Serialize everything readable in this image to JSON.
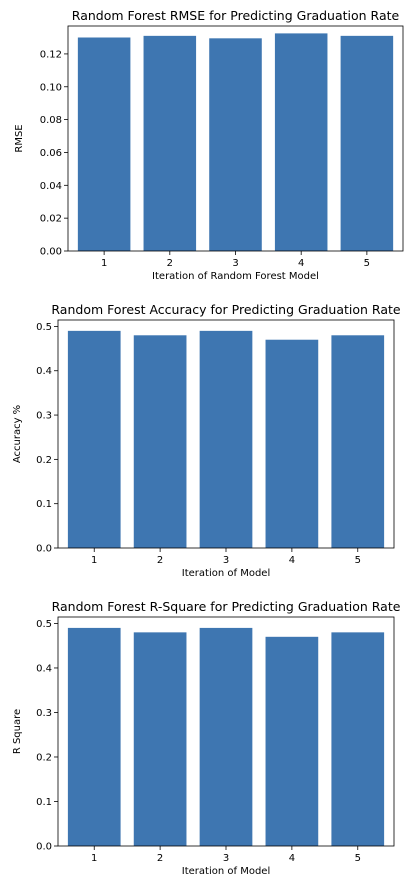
{
  "chart_data": [
    {
      "type": "bar",
      "title": "Random Forest RMSE for Predicting Graduation Rate",
      "xlabel": "Iteration of Random Forest Model",
      "ylabel": "RMSE",
      "categories": [
        "1",
        "2",
        "3",
        "4",
        "5"
      ],
      "values": [
        0.13,
        0.131,
        0.1295,
        0.1325,
        0.131
      ],
      "ylim": [
        0,
        0.137
      ],
      "yticks": [
        "0.00",
        "0.02",
        "0.04",
        "0.06",
        "0.08",
        "0.10",
        "0.12"
      ],
      "grid": false,
      "color": "#3e76b1"
    },
    {
      "type": "bar",
      "title": "Random Forest Accuracy for Predicting Graduation Rate",
      "xlabel": "Iteration of Model",
      "ylabel": "Accuracy %",
      "categories": [
        "1",
        "2",
        "3",
        "4",
        "5"
      ],
      "values": [
        0.49,
        0.48,
        0.49,
        0.47,
        0.48
      ],
      "ylim": [
        0,
        0.5145
      ],
      "yticks": [
        "0.0",
        "0.1",
        "0.2",
        "0.3",
        "0.4",
        "0.5"
      ],
      "grid": false,
      "color": "#3e76b1"
    },
    {
      "type": "bar",
      "title": "Random Forest R-Square for Predicting Graduation Rate",
      "xlabel": "Iteration of Model",
      "ylabel": "R Square",
      "categories": [
        "1",
        "2",
        "3",
        "4",
        "5"
      ],
      "values": [
        0.49,
        0.48,
        0.49,
        0.47,
        0.48
      ],
      "ylim": [
        0,
        0.5145
      ],
      "yticks": [
        "0.0",
        "0.1",
        "0.2",
        "0.3",
        "0.4",
        "0.5"
      ],
      "grid": false,
      "color": "#3e76b1"
    }
  ]
}
